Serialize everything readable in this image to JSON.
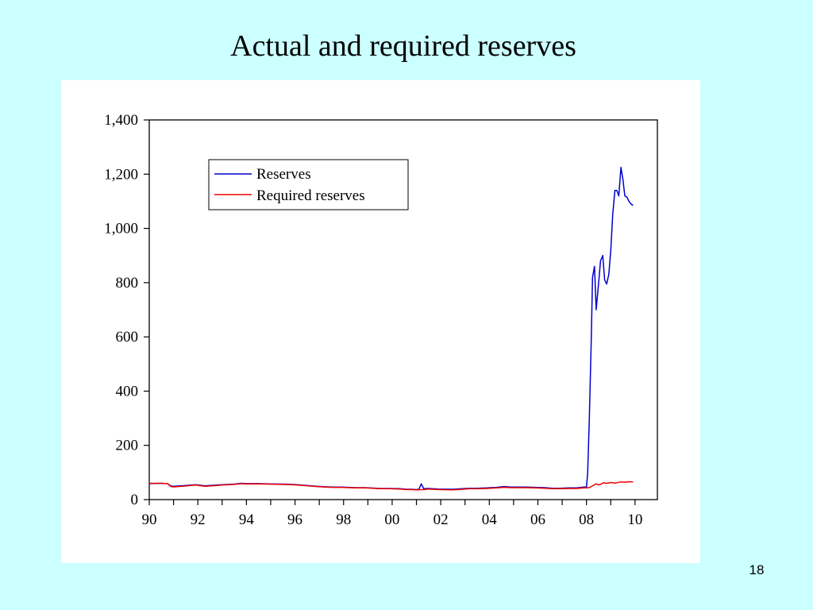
{
  "slide": {
    "title": "Actual and required reserves",
    "page_number": "18"
  },
  "chart_data": {
    "type": "line",
    "title": "",
    "xlabel": "",
    "ylabel": "",
    "xlim": [
      1990,
      2010.92
    ],
    "ylim": [
      0,
      1400
    ],
    "yticks": [
      0,
      200,
      400,
      600,
      800,
      1000,
      1200,
      1400
    ],
    "ytick_labels": [
      "0",
      "200",
      "400",
      "600",
      "800",
      "1,000",
      "1,200",
      "1,400"
    ],
    "xtick_labels": [
      "90",
      "92",
      "94",
      "96",
      "98",
      "00",
      "02",
      "04",
      "06",
      "08",
      "10"
    ],
    "xtick_label_positions": [
      1990,
      1992,
      1994,
      1996,
      1998,
      2000,
      2002,
      2004,
      2006,
      2008,
      2010
    ],
    "xtick_mark_positions": [
      1990,
      1991,
      1992,
      1993,
      1994,
      1995,
      1996,
      1997,
      1998,
      1999,
      2000,
      2001,
      2002,
      2003,
      2004,
      2005,
      2006,
      2007,
      2008,
      2009,
      2010
    ],
    "grid": false,
    "legend": "top-left",
    "series": [
      {
        "name": "Reserves",
        "color": "#0000CC",
        "points": [
          [
            1990.0,
            59
          ],
          [
            1990.5,
            60
          ],
          [
            1990.75,
            59
          ],
          [
            1990.9,
            50
          ],
          [
            1991.0,
            49
          ],
          [
            1991.5,
            52
          ],
          [
            1991.9,
            55
          ],
          [
            1992.3,
            51
          ],
          [
            1992.8,
            54
          ],
          [
            1993.0,
            55
          ],
          [
            1993.5,
            57
          ],
          [
            1993.8,
            60
          ],
          [
            1994.0,
            59
          ],
          [
            1994.5,
            59
          ],
          [
            1994.9,
            58
          ],
          [
            1995.5,
            57
          ],
          [
            1995.9,
            56
          ],
          [
            1996.5,
            52
          ],
          [
            1996.9,
            49
          ],
          [
            1997.5,
            46
          ],
          [
            1997.9,
            46
          ],
          [
            1998.5,
            44
          ],
          [
            1998.9,
            44
          ],
          [
            1999.5,
            41
          ],
          [
            1999.9,
            41
          ],
          [
            2000.3,
            40
          ],
          [
            2000.6,
            38
          ],
          [
            2000.8,
            38
          ],
          [
            2001.0,
            37
          ],
          [
            2001.1,
            38
          ],
          [
            2001.2,
            58
          ],
          [
            2001.3,
            40
          ],
          [
            2001.5,
            41
          ],
          [
            2001.9,
            39
          ],
          [
            2002.5,
            38
          ],
          [
            2002.9,
            40
          ],
          [
            2003.2,
            42
          ],
          [
            2003.5,
            42
          ],
          [
            2003.9,
            43
          ],
          [
            2004.3,
            45
          ],
          [
            2004.6,
            48
          ],
          [
            2004.9,
            46
          ],
          [
            2005.5,
            46
          ],
          [
            2005.9,
            45
          ],
          [
            2006.3,
            44
          ],
          [
            2006.6,
            42
          ],
          [
            2006.9,
            42
          ],
          [
            2007.3,
            43
          ],
          [
            2007.6,
            43
          ],
          [
            2007.9,
            46
          ],
          [
            2008.0,
            46
          ],
          [
            2008.05,
            100
          ],
          [
            2008.12,
            300
          ],
          [
            2008.2,
            600
          ],
          [
            2008.25,
            820
          ],
          [
            2008.33,
            860
          ],
          [
            2008.4,
            700
          ],
          [
            2008.5,
            800
          ],
          [
            2008.58,
            880
          ],
          [
            2008.67,
            900
          ],
          [
            2008.75,
            810
          ],
          [
            2008.83,
            795
          ],
          [
            2008.92,
            830
          ],
          [
            2009.0,
            920
          ],
          [
            2009.08,
            1050
          ],
          [
            2009.17,
            1140
          ],
          [
            2009.25,
            1140
          ],
          [
            2009.33,
            1120
          ],
          [
            2009.42,
            1225
          ],
          [
            2009.5,
            1180
          ],
          [
            2009.58,
            1120
          ],
          [
            2009.67,
            1115
          ],
          [
            2009.75,
            1100
          ],
          [
            2009.83,
            1090
          ],
          [
            2009.92,
            1085
          ]
        ]
      },
      {
        "name": "Required reserves",
        "color": "#EE0000",
        "points": [
          [
            1990.0,
            60
          ],
          [
            1990.5,
            60
          ],
          [
            1990.75,
            59
          ],
          [
            1990.9,
            48
          ],
          [
            1991.0,
            47
          ],
          [
            1991.5,
            50
          ],
          [
            1991.9,
            54
          ],
          [
            1992.3,
            49
          ],
          [
            1992.8,
            52
          ],
          [
            1993.0,
            54
          ],
          [
            1993.5,
            56
          ],
          [
            1993.8,
            59
          ],
          [
            1994.0,
            58
          ],
          [
            1994.5,
            58
          ],
          [
            1994.9,
            57
          ],
          [
            1995.5,
            56
          ],
          [
            1995.9,
            55
          ],
          [
            1996.5,
            51
          ],
          [
            1996.9,
            48
          ],
          [
            1997.5,
            45
          ],
          [
            1997.9,
            45
          ],
          [
            1998.5,
            43
          ],
          [
            1998.9,
            43
          ],
          [
            1999.5,
            40
          ],
          [
            1999.9,
            40
          ],
          [
            2000.3,
            39
          ],
          [
            2000.6,
            37
          ],
          [
            2000.8,
            37
          ],
          [
            2001.0,
            36
          ],
          [
            2001.3,
            37
          ],
          [
            2001.5,
            39
          ],
          [
            2001.9,
            37
          ],
          [
            2002.5,
            36
          ],
          [
            2002.9,
            38
          ],
          [
            2003.2,
            40
          ],
          [
            2003.5,
            40
          ],
          [
            2003.9,
            41
          ],
          [
            2004.3,
            43
          ],
          [
            2004.6,
            45
          ],
          [
            2004.9,
            44
          ],
          [
            2005.5,
            44
          ],
          [
            2005.9,
            43
          ],
          [
            2006.3,
            42
          ],
          [
            2006.6,
            40
          ],
          [
            2006.9,
            40
          ],
          [
            2007.3,
            41
          ],
          [
            2007.6,
            41
          ],
          [
            2007.9,
            43
          ],
          [
            2008.0,
            43
          ],
          [
            2008.1,
            44
          ],
          [
            2008.2,
            48
          ],
          [
            2008.4,
            58
          ],
          [
            2008.5,
            54
          ],
          [
            2008.6,
            57
          ],
          [
            2008.7,
            62
          ],
          [
            2008.83,
            60
          ],
          [
            2009.0,
            63
          ],
          [
            2009.2,
            61
          ],
          [
            2009.4,
            65
          ],
          [
            2009.6,
            64
          ],
          [
            2009.75,
            66
          ],
          [
            2009.92,
            65
          ]
        ]
      }
    ]
  }
}
